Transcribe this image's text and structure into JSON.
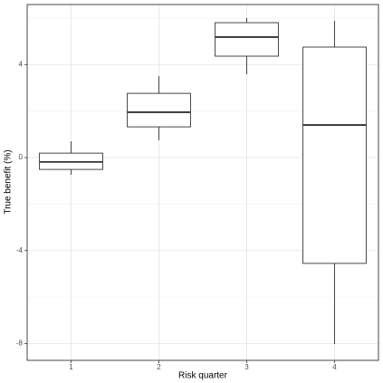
{
  "chart_data": {
    "type": "box",
    "x_label": "Risk quarter",
    "y_label": "True benefit (%)",
    "categories": [
      "1",
      "2",
      "3",
      "4"
    ],
    "boxes": [
      {
        "min": -0.74,
        "q1": -0.51,
        "median": -0.19,
        "q3": 0.19,
        "max": 0.7
      },
      {
        "min": 0.74,
        "q1": 1.32,
        "median": 1.95,
        "q3": 2.76,
        "max": 3.5
      },
      {
        "min": 3.58,
        "q1": 4.36,
        "median": 5.18,
        "q3": 5.8,
        "max": 6.0
      },
      {
        "min": -8.02,
        "q1": -4.55,
        "median": 1.4,
        "q3": 4.75,
        "max": 5.88
      }
    ],
    "color": "#333333",
    "ylim": [
      -8.72,
      6.58
    ],
    "yticks": [
      -8,
      -4,
      0,
      4
    ],
    "yminor": [
      -6,
      -2,
      2,
      6
    ],
    "grid": true
  }
}
